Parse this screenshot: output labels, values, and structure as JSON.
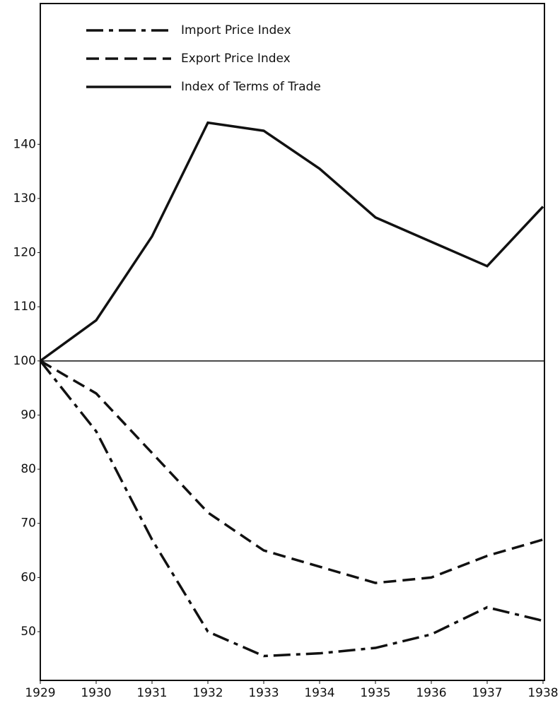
{
  "chart_data": {
    "type": "line",
    "categories": [
      "1929",
      "1930",
      "1931",
      "1932",
      "1933",
      "1934",
      "1935",
      "1936",
      "1937",
      "1938"
    ],
    "series": [
      {
        "name": "Import Price Index",
        "color": "#111111",
        "style": "dashdot",
        "values": [
          100,
          87,
          67,
          50,
          45.5,
          46,
          47,
          49.5,
          54.5,
          52
        ]
      },
      {
        "name": "Export Price Index",
        "color": "#111111",
        "style": "dashed",
        "values": [
          100,
          94,
          83,
          72,
          65,
          62,
          59,
          60,
          64,
          67
        ]
      },
      {
        "name": "Index of Terms of Trade",
        "color": "#111111",
        "style": "solid",
        "values": [
          100,
          107.5,
          123,
          144,
          142.5,
          135.5,
          126.5,
          122,
          117.5,
          128.5
        ]
      }
    ],
    "ylim": [
      41,
      166
    ],
    "yticks": [
      50,
      60,
      70,
      80,
      90,
      100,
      110,
      120,
      130,
      140
    ],
    "reference_line": 100,
    "legend": "upper left"
  }
}
